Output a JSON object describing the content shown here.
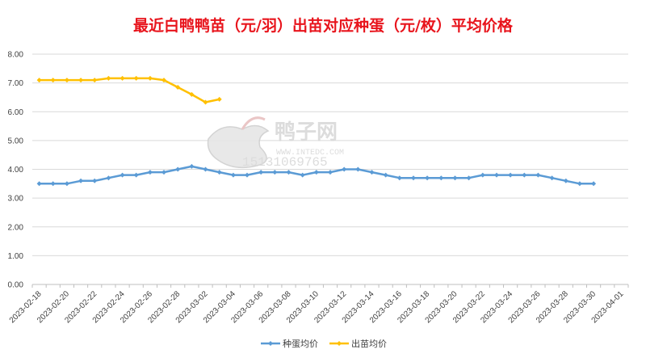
{
  "chart_data": {
    "type": "line",
    "title": "最近白鸭鸭苗（元/羽）出苗对应种蛋（元/枚）平均价格",
    "xlabel": "",
    "ylabel": "",
    "ylim": [
      0,
      8
    ],
    "y_ticks": [
      "0.00",
      "1.00",
      "2.00",
      "3.00",
      "4.00",
      "5.00",
      "6.00",
      "7.00",
      "8.00"
    ],
    "x_tick_labels": [
      "2023-02-18",
      "2023-02-20",
      "2023-02-22",
      "2023-02-24",
      "2023-02-26",
      "2023-02-28",
      "2023-03-02",
      "2023-03-04",
      "2023-03-06",
      "2023-03-08",
      "2023-03-10",
      "2023-03-12",
      "2023-03-14",
      "2023-03-16",
      "2023-03-18",
      "2023-03-20",
      "2023-03-22",
      "2023-03-24",
      "2023-03-26",
      "2023-03-28",
      "2023-03-30",
      "2023-04-01"
    ],
    "x_dates": [
      "2023-02-18",
      "2023-02-19",
      "2023-02-20",
      "2023-02-21",
      "2023-02-22",
      "2023-02-23",
      "2023-02-24",
      "2023-02-25",
      "2023-02-26",
      "2023-02-27",
      "2023-02-28",
      "2023-03-01",
      "2023-03-02",
      "2023-03-03",
      "2023-03-04",
      "2023-03-05",
      "2023-03-06",
      "2023-03-07",
      "2023-03-08",
      "2023-03-09",
      "2023-03-10",
      "2023-03-11",
      "2023-03-12",
      "2023-03-13",
      "2023-03-14",
      "2023-03-15",
      "2023-03-16",
      "2023-03-17",
      "2023-03-18",
      "2023-03-19",
      "2023-03-20",
      "2023-03-21",
      "2023-03-22",
      "2023-03-23",
      "2023-03-24",
      "2023-03-25",
      "2023-03-26",
      "2023-03-27",
      "2023-03-28",
      "2023-03-29",
      "2023-03-30",
      "2023-03-31",
      "2023-04-01"
    ],
    "series": [
      {
        "name": "种蛋均价",
        "color": "#5b9bd5",
        "values": [
          3.5,
          3.5,
          3.5,
          3.6,
          3.6,
          3.7,
          3.8,
          3.8,
          3.9,
          3.9,
          4.0,
          4.1,
          4.0,
          3.9,
          3.8,
          3.8,
          3.9,
          3.9,
          3.9,
          3.8,
          3.9,
          3.9,
          4.0,
          4.0,
          3.9,
          3.8,
          3.7,
          3.7,
          3.7,
          3.7,
          3.7,
          3.7,
          3.8,
          3.8,
          3.8,
          3.8,
          3.8,
          3.7,
          3.6,
          3.5,
          3.5,
          null,
          null
        ]
      },
      {
        "name": "出苗均价",
        "color": "#ffc000",
        "values": [
          7.1,
          7.1,
          7.1,
          7.1,
          7.1,
          7.16,
          7.16,
          7.16,
          7.16,
          7.1,
          6.85,
          6.6,
          6.33,
          6.43,
          null,
          null,
          null,
          null,
          null,
          null,
          null,
          null,
          null,
          null,
          null,
          null,
          null,
          null,
          null,
          null,
          null,
          null,
          null,
          null,
          null,
          null,
          null,
          null,
          null,
          null,
          null,
          null,
          null
        ]
      }
    ],
    "grid": true,
    "legend_position": "bottom"
  },
  "watermark": {
    "name": "鸭子网",
    "url": "WWW.INTEDC.COM",
    "phone": "15131069765"
  }
}
